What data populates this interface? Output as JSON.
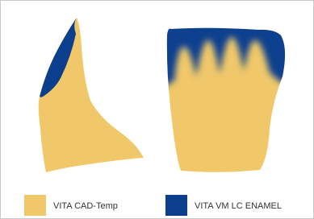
{
  "legend": {
    "items": [
      {
        "label": "VITA CAD-Temp"
      },
      {
        "label": "VITA VM LC ENAMEL"
      }
    ]
  }
}
